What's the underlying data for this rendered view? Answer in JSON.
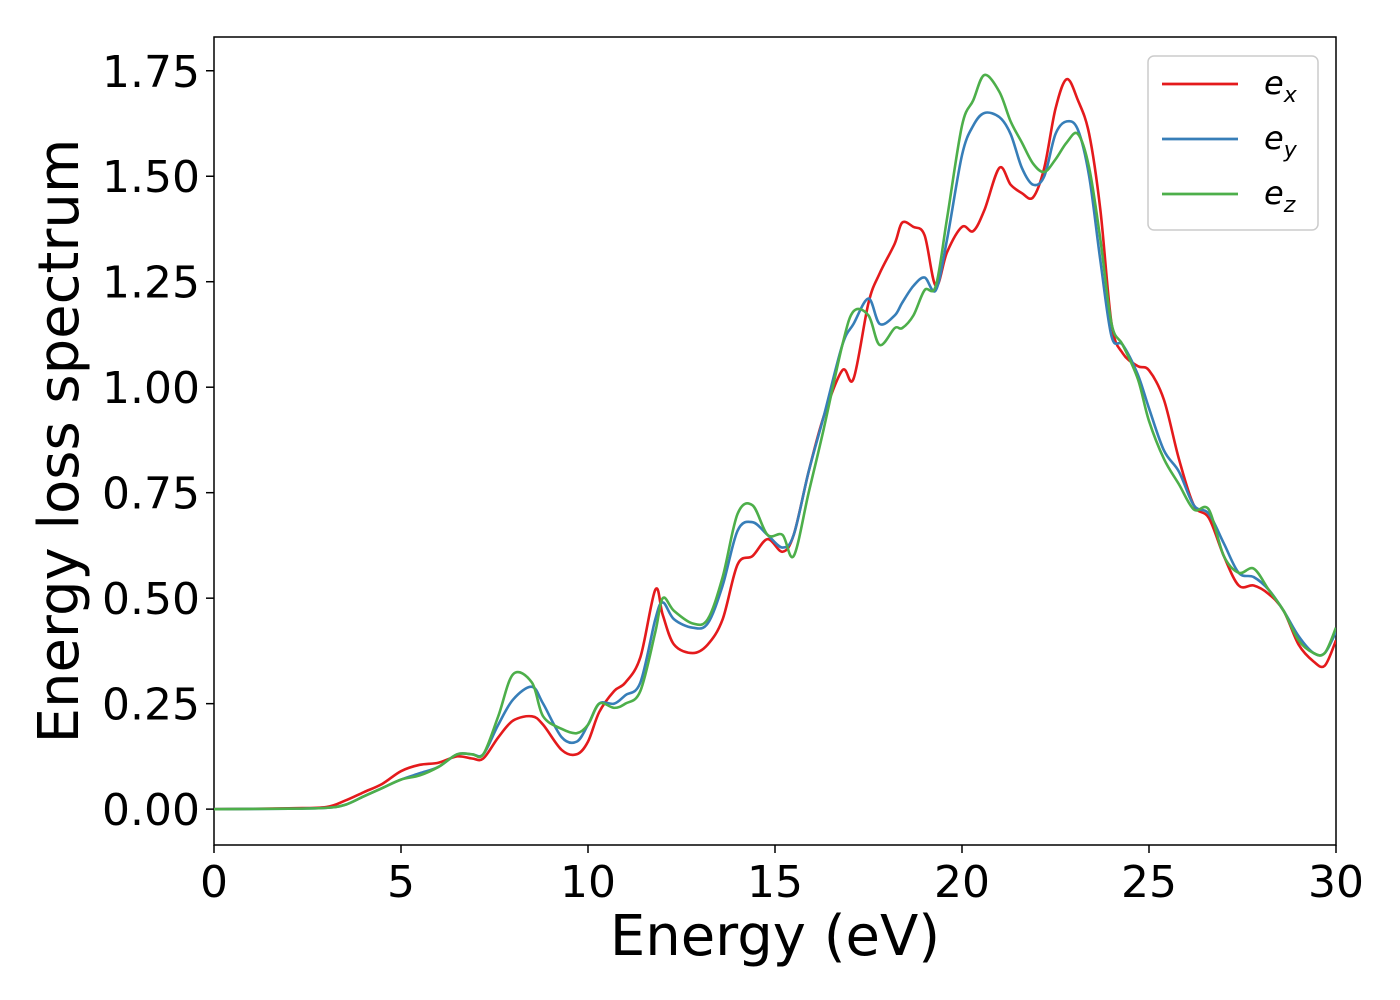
{
  "chart_data": {
    "type": "line",
    "title": "",
    "xlabel": "Energy (eV)",
    "ylabel": "Energy loss spectrum",
    "xlim": [
      0,
      30
    ],
    "ylim": [
      -0.085,
      1.83
    ],
    "xticks": [
      0,
      5,
      10,
      15,
      20,
      25,
      30
    ],
    "xtick_labels": [
      "0",
      "5",
      "10",
      "15",
      "20",
      "25",
      "30"
    ],
    "yticks": [
      0.0,
      0.25,
      0.5,
      0.75,
      1.0,
      1.25,
      1.5,
      1.75
    ],
    "ytick_labels": [
      "0.00",
      "0.25",
      "0.50",
      "0.75",
      "1.00",
      "1.25",
      "1.50",
      "1.75"
    ],
    "grid": false,
    "legend_position": "top-right",
    "series": [
      {
        "name": "e_x",
        "legend_base": "e",
        "legend_sub": "x",
        "color": "#e41a1c",
        "x": [
          0,
          2,
          3,
          3.5,
          4,
          4.5,
          5,
          5.5,
          6,
          6.5,
          6.9,
          7.2,
          7.6,
          8,
          8.5,
          8.8,
          9.3,
          9.7,
          10,
          10.3,
          10.7,
          11,
          11.4,
          11.8,
          12,
          12.3,
          12.8,
          13.2,
          13.6,
          14,
          14.4,
          14.8,
          15.2,
          15.5,
          15.9,
          16.3,
          16.8,
          17.1,
          17.5,
          17.8,
          18.2,
          18.4,
          18.7,
          19,
          19.3,
          19.6,
          20,
          20.3,
          20.6,
          21,
          21.3,
          21.6,
          21.9,
          22.2,
          22.5,
          22.8,
          23.1,
          23.4,
          23.7,
          24,
          24.3,
          24.7,
          25,
          25.4,
          25.8,
          26.2,
          26.6,
          27,
          27.4,
          27.8,
          28.2,
          28.6,
          29,
          29.4,
          29.7,
          30
        ],
        "y": [
          0,
          0.002,
          0.005,
          0.02,
          0.04,
          0.06,
          0.09,
          0.105,
          0.11,
          0.125,
          0.12,
          0.12,
          0.17,
          0.21,
          0.22,
          0.2,
          0.14,
          0.13,
          0.16,
          0.23,
          0.28,
          0.3,
          0.36,
          0.52,
          0.46,
          0.39,
          0.37,
          0.39,
          0.45,
          0.58,
          0.6,
          0.64,
          0.61,
          0.65,
          0.8,
          0.93,
          1.04,
          1.02,
          1.2,
          1.27,
          1.34,
          1.39,
          1.38,
          1.36,
          1.24,
          1.32,
          1.38,
          1.37,
          1.42,
          1.52,
          1.48,
          1.46,
          1.45,
          1.52,
          1.66,
          1.73,
          1.68,
          1.6,
          1.42,
          1.15,
          1.08,
          1.05,
          1.04,
          0.97,
          0.83,
          0.72,
          0.69,
          0.6,
          0.53,
          0.53,
          0.51,
          0.47,
          0.39,
          0.35,
          0.34,
          0.4
        ]
      },
      {
        "name": "e_y",
        "legend_base": "e",
        "legend_sub": "y",
        "color": "#377eb8",
        "x": [
          0,
          2,
          3,
          3.5,
          4,
          4.5,
          5,
          5.5,
          6,
          6.5,
          6.9,
          7.2,
          7.6,
          8,
          8.5,
          8.8,
          9.3,
          9.7,
          10,
          10.3,
          10.7,
          11,
          11.4,
          11.8,
          12,
          12.3,
          12.8,
          13.2,
          13.6,
          14,
          14.4,
          14.8,
          15.2,
          15.5,
          15.9,
          16.3,
          16.8,
          17.1,
          17.5,
          17.8,
          18.2,
          18.4,
          18.7,
          19,
          19.3,
          19.6,
          20,
          20.3,
          20.6,
          21,
          21.3,
          21.6,
          21.9,
          22.2,
          22.5,
          22.8,
          23.1,
          23.4,
          23.7,
          24,
          24.3,
          24.7,
          25,
          25.4,
          25.8,
          26.2,
          26.6,
          27,
          27.4,
          27.8,
          28.2,
          28.6,
          29,
          29.4,
          29.7,
          30
        ],
        "y": [
          0,
          0.001,
          0.003,
          0.01,
          0.03,
          0.05,
          0.07,
          0.085,
          0.1,
          0.13,
          0.13,
          0.13,
          0.2,
          0.26,
          0.29,
          0.25,
          0.17,
          0.16,
          0.2,
          0.25,
          0.25,
          0.27,
          0.3,
          0.45,
          0.49,
          0.45,
          0.43,
          0.44,
          0.53,
          0.66,
          0.68,
          0.65,
          0.62,
          0.65,
          0.8,
          0.93,
          1.1,
          1.15,
          1.21,
          1.15,
          1.17,
          1.2,
          1.24,
          1.26,
          1.23,
          1.35,
          1.55,
          1.62,
          1.65,
          1.64,
          1.6,
          1.52,
          1.48,
          1.5,
          1.6,
          1.63,
          1.61,
          1.5,
          1.3,
          1.12,
          1.1,
          1.03,
          0.95,
          0.85,
          0.8,
          0.72,
          0.7,
          0.63,
          0.56,
          0.55,
          0.52,
          0.47,
          0.41,
          0.37,
          0.37,
          0.42
        ]
      },
      {
        "name": "e_z",
        "legend_base": "e",
        "legend_sub": "z",
        "color": "#4daf4a",
        "x": [
          0,
          2,
          3,
          3.5,
          4,
          4.5,
          5,
          5.5,
          6,
          6.5,
          6.9,
          7.2,
          7.6,
          8,
          8.5,
          8.8,
          9.3,
          9.7,
          10,
          10.3,
          10.7,
          11,
          11.4,
          11.8,
          12,
          12.3,
          12.8,
          13.2,
          13.6,
          14,
          14.4,
          14.8,
          15.2,
          15.5,
          15.9,
          16.3,
          16.8,
          17.1,
          17.5,
          17.8,
          18.2,
          18.4,
          18.7,
          19,
          19.3,
          19.6,
          20,
          20.3,
          20.6,
          21,
          21.3,
          21.6,
          21.9,
          22.2,
          22.5,
          22.8,
          23.1,
          23.4,
          23.7,
          24,
          24.3,
          24.7,
          25,
          25.4,
          25.8,
          26.2,
          26.6,
          27,
          27.4,
          27.8,
          28.2,
          28.6,
          29,
          29.4,
          29.7,
          30
        ],
        "y": [
          0,
          0.001,
          0.003,
          0.01,
          0.03,
          0.05,
          0.07,
          0.08,
          0.1,
          0.13,
          0.13,
          0.13,
          0.22,
          0.32,
          0.3,
          0.22,
          0.19,
          0.18,
          0.2,
          0.25,
          0.24,
          0.25,
          0.28,
          0.42,
          0.5,
          0.47,
          0.44,
          0.45,
          0.55,
          0.7,
          0.72,
          0.65,
          0.65,
          0.6,
          0.75,
          0.9,
          1.1,
          1.18,
          1.17,
          1.1,
          1.14,
          1.14,
          1.17,
          1.23,
          1.24,
          1.4,
          1.62,
          1.68,
          1.74,
          1.7,
          1.63,
          1.58,
          1.53,
          1.51,
          1.54,
          1.58,
          1.6,
          1.52,
          1.35,
          1.15,
          1.1,
          1.02,
          0.92,
          0.83,
          0.77,
          0.71,
          0.71,
          0.6,
          0.56,
          0.57,
          0.52,
          0.47,
          0.4,
          0.37,
          0.37,
          0.43
        ]
      }
    ]
  }
}
